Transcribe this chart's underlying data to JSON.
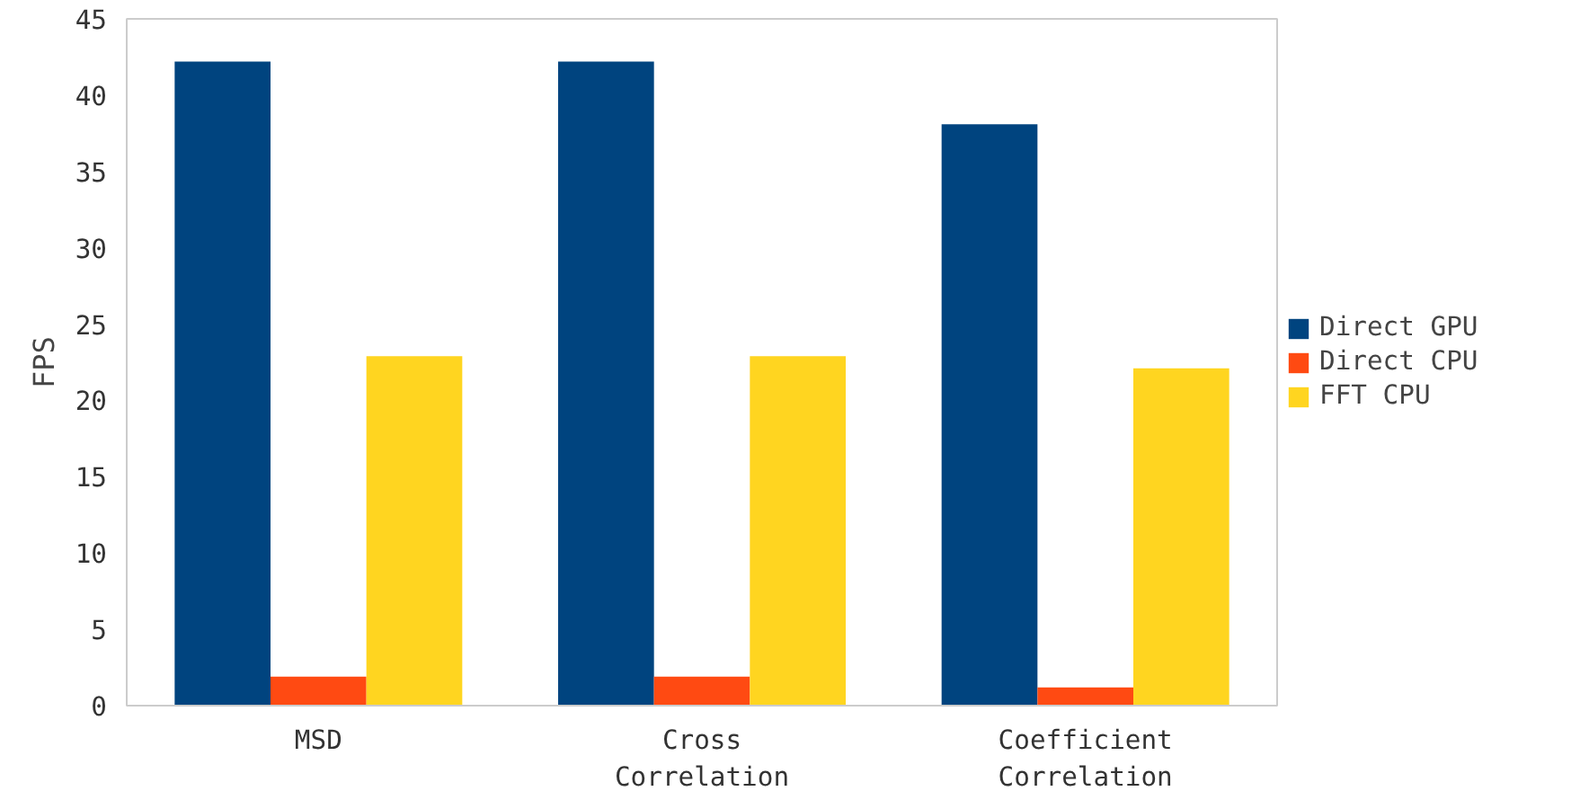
{
  "chart_data": {
    "type": "bar",
    "ylabel": "FPS",
    "categories": [
      "MSD",
      "Cross\nCorrelation",
      "Coefficient\nCorrelation"
    ],
    "series": [
      {
        "name": "Direct GPU",
        "color": "#00447f",
        "values": [
          42.2,
          42.2,
          38.1
        ]
      },
      {
        "name": "Direct CPU",
        "color": "#ff4a12",
        "values": [
          1.9,
          1.9,
          1.2
        ]
      },
      {
        "name": "FFT CPU",
        "color": "#ffd520",
        "values": [
          22.9,
          22.9,
          22.1
        ]
      }
    ],
    "ylim": [
      0,
      45
    ],
    "yticks": [
      0,
      5,
      10,
      15,
      20,
      25,
      30,
      35,
      40,
      45
    ],
    "grid": false,
    "legend": "right"
  }
}
